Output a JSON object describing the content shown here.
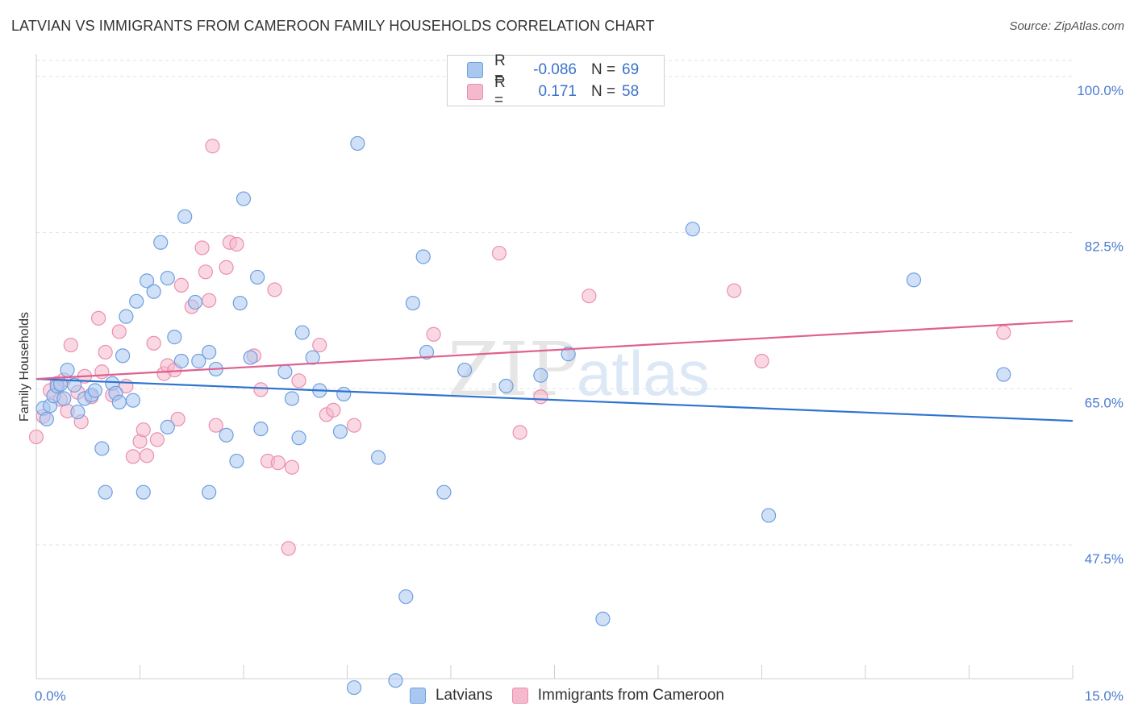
{
  "header": {
    "title": "LATVIAN VS IMMIGRANTS FROM CAMEROON FAMILY HOUSEHOLDS CORRELATION CHART",
    "source": "Source: ZipAtlas.com"
  },
  "watermark": {
    "zip": "ZIP",
    "atlas": "atlas"
  },
  "legend": {
    "rows": [
      {
        "r_label": "R =",
        "r_value": "-0.086",
        "n_label": "N =",
        "n_value": "69",
        "color": "#a9c8f0"
      },
      {
        "r_label": "R =",
        "r_value": "0.171",
        "n_label": "N =",
        "n_value": "58",
        "color": "#f5b8cc"
      }
    ]
  },
  "bottom_legend": [
    {
      "label": "Latvians",
      "color": "#a9c8f0"
    },
    {
      "label": "Immigrants from Cameroon",
      "color": "#f5b8cc"
    }
  ],
  "chart_data": {
    "type": "scatter",
    "title": "LATVIAN VS IMMIGRANTS FROM CAMEROON FAMILY HOUSEHOLDS CORRELATION CHART",
    "xlabel": "",
    "ylabel": "Family Households",
    "xlim": [
      0,
      15
    ],
    "ylim": [
      32.5,
      101.8
    ],
    "x_tick_labels": [
      "0.0%",
      "15.0%"
    ],
    "y_ticks": [
      47.5,
      65.0,
      82.5,
      100.0
    ],
    "y_tick_labels": [
      "47.5%",
      "65.0%",
      "82.5%",
      "100.0%"
    ],
    "grid": "horizontal dashed",
    "legend_position": "top-center",
    "series": [
      {
        "name": "Latvians",
        "color": "#a9c8f0",
        "stroke": "#6f9fe0",
        "trend": {
          "x": [
            0,
            15
          ],
          "y": [
            66.1,
            61.4
          ],
          "color": "#2f74d0"
        },
        "points": [
          [
            0.1,
            62.8
          ],
          [
            0.15,
            61.6
          ],
          [
            0.2,
            63.1
          ],
          [
            0.25,
            64.2
          ],
          [
            0.3,
            65.3
          ],
          [
            0.35,
            65.5
          ],
          [
            0.4,
            63.9
          ],
          [
            0.45,
            67.1
          ],
          [
            0.55,
            65.4
          ],
          [
            0.6,
            62.4
          ],
          [
            0.7,
            63.9
          ],
          [
            0.8,
            64.3
          ],
          [
            0.85,
            64.8
          ],
          [
            0.95,
            58.3
          ],
          [
            1.0,
            53.4
          ],
          [
            1.1,
            65.6
          ],
          [
            1.15,
            64.5
          ],
          [
            1.2,
            63.5
          ],
          [
            1.25,
            68.7
          ],
          [
            1.3,
            73.1
          ],
          [
            1.4,
            63.7
          ],
          [
            1.45,
            74.8
          ],
          [
            1.55,
            53.4
          ],
          [
            1.6,
            77.1
          ],
          [
            1.7,
            75.9
          ],
          [
            1.8,
            81.4
          ],
          [
            1.9,
            60.7
          ],
          [
            1.9,
            77.4
          ],
          [
            2.0,
            70.8
          ],
          [
            2.1,
            68.1
          ],
          [
            2.15,
            84.3
          ],
          [
            2.3,
            74.7
          ],
          [
            2.35,
            68.1
          ],
          [
            2.5,
            53.4
          ],
          [
            2.5,
            69.1
          ],
          [
            2.6,
            67.2
          ],
          [
            2.75,
            59.8
          ],
          [
            2.9,
            56.9
          ],
          [
            2.95,
            74.6
          ],
          [
            3.0,
            86.3
          ],
          [
            3.1,
            68.5
          ],
          [
            3.2,
            77.5
          ],
          [
            3.25,
            60.5
          ],
          [
            3.6,
            66.9
          ],
          [
            3.7,
            63.9
          ],
          [
            3.8,
            59.5
          ],
          [
            3.85,
            71.3
          ],
          [
            4.0,
            68.5
          ],
          [
            4.1,
            64.8
          ],
          [
            4.4,
            60.2
          ],
          [
            4.45,
            64.4
          ],
          [
            4.6,
            31.5
          ],
          [
            4.65,
            92.5
          ],
          [
            4.95,
            57.3
          ],
          [
            5.2,
            32.3
          ],
          [
            5.35,
            41.7
          ],
          [
            5.45,
            74.6
          ],
          [
            5.6,
            79.8
          ],
          [
            5.65,
            69.1
          ],
          [
            5.9,
            53.4
          ],
          [
            6.2,
            67.1
          ],
          [
            6.8,
            65.3
          ],
          [
            7.3,
            66.5
          ],
          [
            7.7,
            68.9
          ],
          [
            8.2,
            39.2
          ],
          [
            9.5,
            82.9
          ],
          [
            10.6,
            50.8
          ],
          [
            12.7,
            77.2
          ],
          [
            14.0,
            66.6
          ]
        ]
      },
      {
        "name": "Immigrants from Cameroon",
        "color": "#f5b8cc",
        "stroke": "#ec8fad",
        "trend": {
          "x": [
            0,
            15
          ],
          "y": [
            66.1,
            72.6
          ],
          "color": "#e0608e"
        },
        "points": [
          [
            0.0,
            59.6
          ],
          [
            0.1,
            61.9
          ],
          [
            0.2,
            64.8
          ],
          [
            0.3,
            65.6
          ],
          [
            0.35,
            63.8
          ],
          [
            0.4,
            66.0
          ],
          [
            0.45,
            62.5
          ],
          [
            0.5,
            69.9
          ],
          [
            0.6,
            64.6
          ],
          [
            0.65,
            61.3
          ],
          [
            0.7,
            66.4
          ],
          [
            0.8,
            64.1
          ],
          [
            0.9,
            72.9
          ],
          [
            0.95,
            66.9
          ],
          [
            1.0,
            69.1
          ],
          [
            1.1,
            64.3
          ],
          [
            1.2,
            71.4
          ],
          [
            1.3,
            65.3
          ],
          [
            1.4,
            57.4
          ],
          [
            1.5,
            59.1
          ],
          [
            1.55,
            60.4
          ],
          [
            1.6,
            57.5
          ],
          [
            1.7,
            70.1
          ],
          [
            1.75,
            59.3
          ],
          [
            1.85,
            66.7
          ],
          [
            1.9,
            67.6
          ],
          [
            2.0,
            67.1
          ],
          [
            2.05,
            61.6
          ],
          [
            2.1,
            76.6
          ],
          [
            2.25,
            74.2
          ],
          [
            2.4,
            80.8
          ],
          [
            2.45,
            78.1
          ],
          [
            2.5,
            74.9
          ],
          [
            2.55,
            92.2
          ],
          [
            2.6,
            60.9
          ],
          [
            2.75,
            78.6
          ],
          [
            2.8,
            81.4
          ],
          [
            2.9,
            81.2
          ],
          [
            3.15,
            68.7
          ],
          [
            3.25,
            64.9
          ],
          [
            3.35,
            56.9
          ],
          [
            3.45,
            76.1
          ],
          [
            3.5,
            56.7
          ],
          [
            3.65,
            47.1
          ],
          [
            3.7,
            56.2
          ],
          [
            3.8,
            65.9
          ],
          [
            4.1,
            69.9
          ],
          [
            4.2,
            62.1
          ],
          [
            4.3,
            62.6
          ],
          [
            4.6,
            60.9
          ],
          [
            5.75,
            71.1
          ],
          [
            6.7,
            80.2
          ],
          [
            7.0,
            60.1
          ],
          [
            7.3,
            64.1
          ],
          [
            8.0,
            75.4
          ],
          [
            10.1,
            76.0
          ],
          [
            10.5,
            68.1
          ],
          [
            14.0,
            71.3
          ]
        ]
      }
    ]
  }
}
